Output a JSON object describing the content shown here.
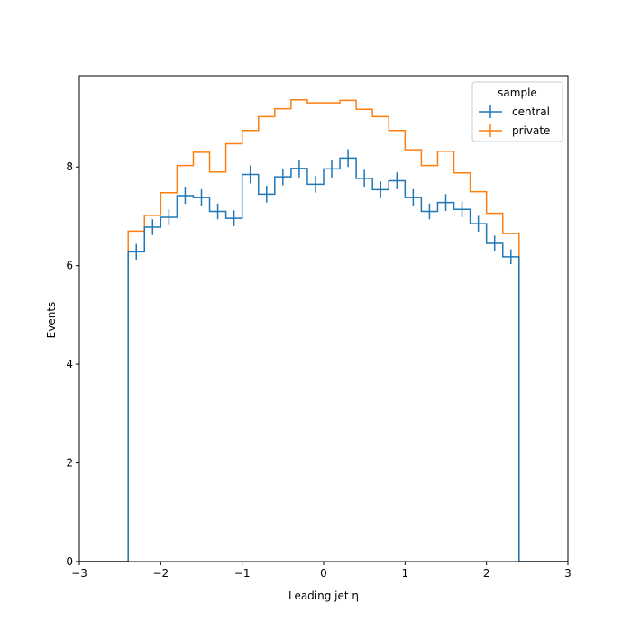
{
  "chart_data": {
    "type": "histogram-step",
    "xlabel": "Leading jet  η",
    "ylabel": "Events",
    "xlim": [
      -3,
      3
    ],
    "ylim": [
      0,
      9.85
    ],
    "xticks": [
      -3,
      -2,
      -1,
      0,
      1,
      2,
      3
    ],
    "xtick_labels": [
      "−3",
      "−2",
      "−1",
      "0",
      "1",
      "2",
      "3"
    ],
    "yticks": [
      0,
      2,
      4,
      6,
      8
    ],
    "ytick_labels": [
      "0",
      "2",
      "4",
      "6",
      "8"
    ],
    "grid": false,
    "legend": {
      "title": "sample",
      "placement": "top-right"
    },
    "bin_edges": [
      -3.0,
      -2.8,
      -2.6,
      -2.4,
      -2.2,
      -2.0,
      -1.8,
      -1.6,
      -1.4,
      -1.2,
      -1.0,
      -0.8,
      -0.6,
      -0.4,
      -0.2,
      0.0,
      0.2,
      0.4,
      0.6,
      0.8,
      1.0,
      1.2,
      1.4,
      1.6,
      1.8,
      2.0,
      2.2,
      2.4,
      2.6,
      2.8,
      3.0
    ],
    "series": [
      {
        "name": "central",
        "color": "#1f77b4",
        "values": [
          0,
          0,
          0,
          6.28,
          6.78,
          6.98,
          7.42,
          7.38,
          7.1,
          6.96,
          7.85,
          7.45,
          7.8,
          7.97,
          7.65,
          7.96,
          8.18,
          7.77,
          7.54,
          7.72,
          7.38,
          7.1,
          7.28,
          7.14,
          6.85,
          6.45,
          6.18,
          0,
          0,
          0
        ],
        "errors": [
          0,
          0,
          0,
          0.16,
          0.16,
          0.16,
          0.17,
          0.17,
          0.16,
          0.16,
          0.18,
          0.17,
          0.17,
          0.18,
          0.17,
          0.18,
          0.18,
          0.17,
          0.17,
          0.17,
          0.17,
          0.16,
          0.17,
          0.16,
          0.16,
          0.16,
          0.15,
          0,
          0,
          0
        ]
      },
      {
        "name": "private",
        "color": "#ff7f0e",
        "values": [
          0,
          0,
          0,
          6.7,
          7.02,
          7.48,
          8.03,
          8.3,
          7.9,
          8.47,
          8.74,
          9.02,
          9.18,
          9.36,
          9.3,
          9.3,
          9.35,
          9.17,
          9.02,
          8.74,
          8.35,
          8.03,
          8.32,
          7.88,
          7.5,
          7.06,
          6.65,
          0,
          0,
          0
        ]
      }
    ]
  }
}
